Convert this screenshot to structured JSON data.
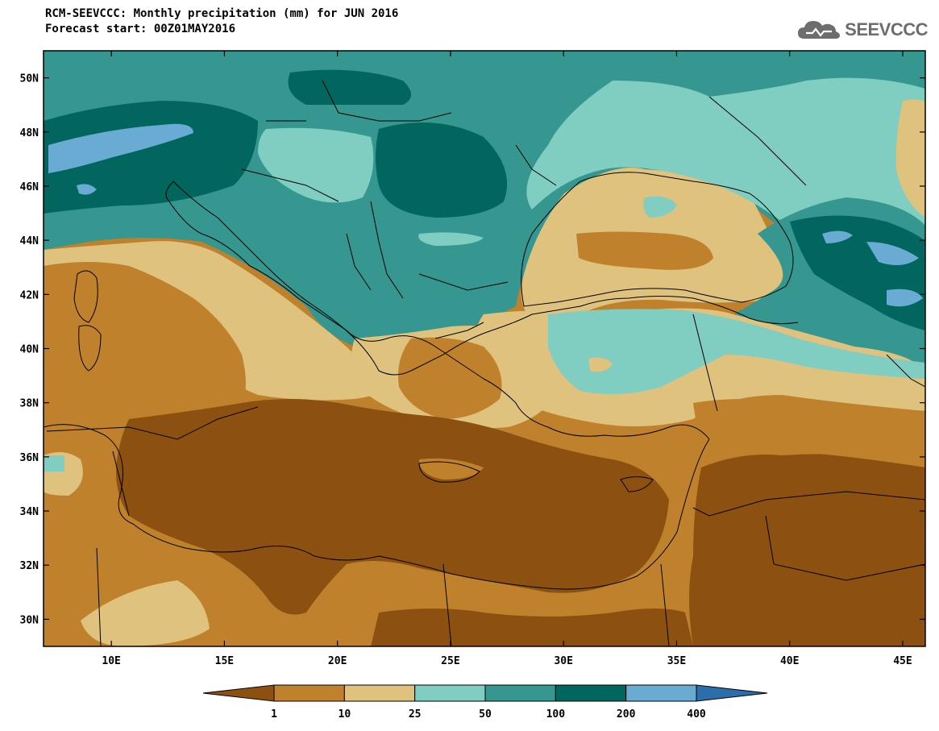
{
  "header": {
    "title_line1": "RCM-SEEVCCC: Monthly precipitation (mm) for JUN 2016",
    "title_line2": "Forecast start: 00Z01MAY2016"
  },
  "logo": {
    "text": "SEEVCCC",
    "icon": "cloud-logo-icon"
  },
  "map": {
    "lon_range": [
      7,
      46
    ],
    "lat_range": [
      29,
      51
    ],
    "lat_ticks": [
      {
        "value": 50,
        "label": "50N"
      },
      {
        "value": 48,
        "label": "48N"
      },
      {
        "value": 46,
        "label": "46N"
      },
      {
        "value": 44,
        "label": "44N"
      },
      {
        "value": 42,
        "label": "42N"
      },
      {
        "value": 40,
        "label": "40N"
      },
      {
        "value": 38,
        "label": "38N"
      },
      {
        "value": 36,
        "label": "36N"
      },
      {
        "value": 34,
        "label": "34N"
      },
      {
        "value": 32,
        "label": "32N"
      },
      {
        "value": 30,
        "label": "30N"
      }
    ],
    "lon_ticks": [
      {
        "value": 10,
        "label": "10E"
      },
      {
        "value": 15,
        "label": "15E"
      },
      {
        "value": 20,
        "label": "20E"
      },
      {
        "value": 25,
        "label": "25E"
      },
      {
        "value": 30,
        "label": "30E"
      },
      {
        "value": 35,
        "label": "35E"
      },
      {
        "value": 40,
        "label": "40E"
      },
      {
        "value": 45,
        "label": "45E"
      }
    ]
  },
  "colorbar": {
    "colors": [
      "#8c5110",
      "#bf812c",
      "#dfc27d",
      "#80cdc1",
      "#35978f",
      "#01665e",
      "#6aabd4",
      "#2c6eaa"
    ],
    "labels": [
      "1",
      "10",
      "25",
      "50",
      "100",
      "200",
      "400"
    ]
  }
}
